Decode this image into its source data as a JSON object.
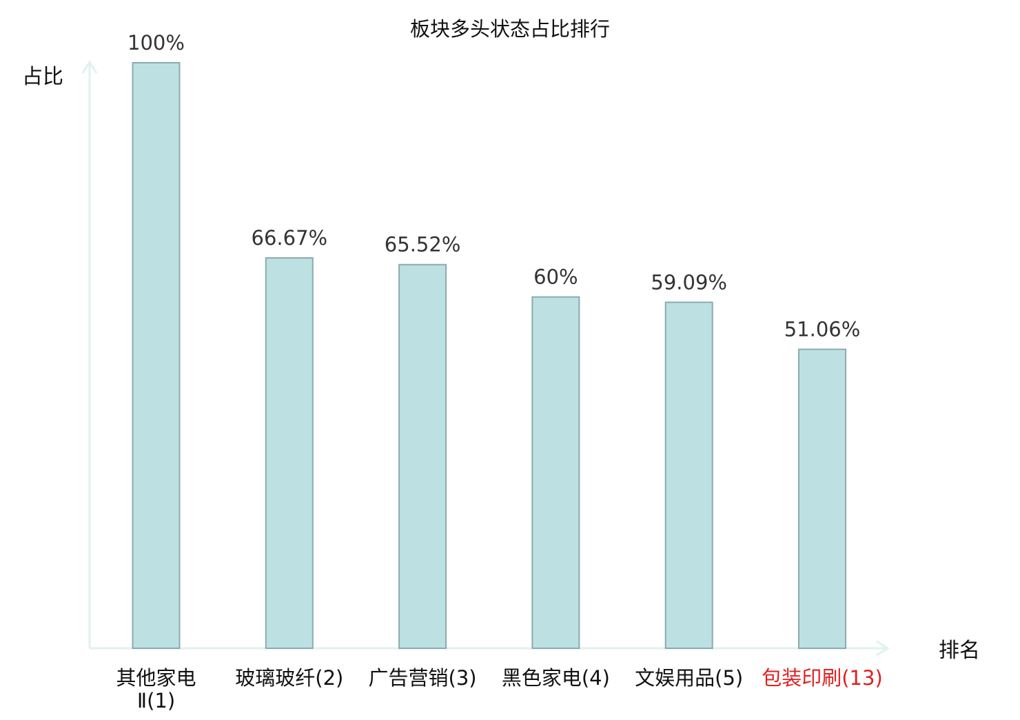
{
  "chart_data": {
    "type": "bar",
    "title": "板块多头状态占比排行",
    "ylabel": "占比",
    "xlabel": "排名",
    "ylim": [
      0,
      100
    ],
    "grid": false,
    "categories": [
      {
        "name": "其他家电Ⅱ",
        "rank": "(1)",
        "label_lines": [
          "其他家电",
          "Ⅱ(1)"
        ],
        "highlight": false
      },
      {
        "name": "玻璃玻纤",
        "rank": "(2)",
        "label_lines": [
          "玻璃玻纤(2)"
        ],
        "highlight": false
      },
      {
        "name": "广告营销",
        "rank": "(3)",
        "label_lines": [
          "广告营销(3)"
        ],
        "highlight": false
      },
      {
        "name": "黑色家电",
        "rank": "(4)",
        "label_lines": [
          "黑色家电(4)"
        ],
        "highlight": false
      },
      {
        "name": "文娱用品",
        "rank": "(5)",
        "label_lines": [
          "文娱用品(5)"
        ],
        "highlight": false
      },
      {
        "name": "包装印刷",
        "rank": "(13)",
        "label_lines": [
          "包装印刷(13)"
        ],
        "highlight": true
      }
    ],
    "values": [
      100,
      66.67,
      65.52,
      60,
      59.09,
      51.06
    ],
    "value_labels": [
      "100%",
      "66.67%",
      "65.52%",
      "60%",
      "59.09%",
      "51.06%"
    ],
    "colors": {
      "bar_fill": "#bde0e3",
      "bar_stroke": "#8aabae",
      "axis": "#dff2ef",
      "label_text": "#333333",
      "highlight_text": "#e02020"
    }
  }
}
